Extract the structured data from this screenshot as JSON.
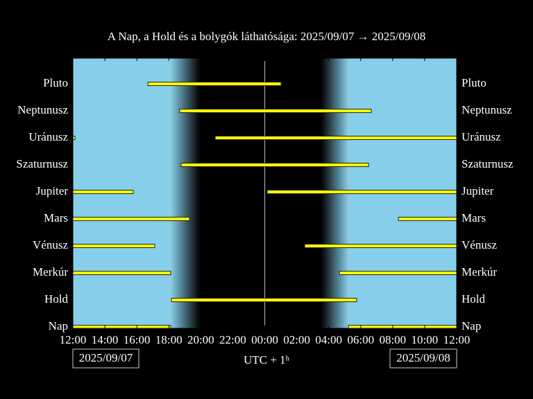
{
  "chart_data": {
    "type": "range-bar",
    "title": "A Nap, a Hold és a bolygók láthatósága: 2025/09/07 → 2025/09/08",
    "xlabel": "UTC + 1ʰ",
    "start_date": "2025/09/07",
    "end_date": "2025/09/08",
    "xlim": [
      12,
      36
    ],
    "xticks": [
      {
        "value": 12,
        "label": "12:00"
      },
      {
        "value": 14,
        "label": "14:00"
      },
      {
        "value": 16,
        "label": "16:00"
      },
      {
        "value": 18,
        "label": "18:00"
      },
      {
        "value": 20,
        "label": "20:00"
      },
      {
        "value": 22,
        "label": "22:00"
      },
      {
        "value": 24,
        "label": "00:00"
      },
      {
        "value": 26,
        "label": "02:00"
      },
      {
        "value": 28,
        "label": "04:00"
      },
      {
        "value": 30,
        "label": "06:00"
      },
      {
        "value": 32,
        "label": "08:00"
      },
      {
        "value": 34,
        "label": "10:00"
      },
      {
        "value": 36,
        "label": "12:00"
      }
    ],
    "sunset": 18.12,
    "dusk_end": 19.94,
    "midnight": 24,
    "dawn_start": 27.54,
    "sunrise": 29.23,
    "day_color": "#87ceeb",
    "night_color": "#000000",
    "bar_color": "#ffff00",
    "series": [
      {
        "name": "Pluto",
        "intervals": [
          [
            16.69,
            25.02
          ]
        ]
      },
      {
        "name": "Neptunusz",
        "intervals": [
          [
            18.68,
            30.66
          ]
        ]
      },
      {
        "name": "Uránusz",
        "intervals": [
          [
            12,
            12.13
          ],
          [
            20.9,
            36
          ]
        ]
      },
      {
        "name": "Szaturnusz",
        "intervals": [
          [
            18.77,
            30.49
          ]
        ]
      },
      {
        "name": "Jupiter",
        "intervals": [
          [
            12,
            15.78
          ],
          [
            24.15,
            36
          ]
        ]
      },
      {
        "name": "Mars",
        "intervals": [
          [
            12,
            19.29
          ],
          [
            32.36,
            36
          ]
        ]
      },
      {
        "name": "Vénusz",
        "intervals": [
          [
            12,
            17.12
          ],
          [
            26.5,
            36
          ]
        ]
      },
      {
        "name": "Merkúr",
        "intervals": [
          [
            12,
            18.12
          ],
          [
            28.67,
            36
          ]
        ]
      },
      {
        "name": "Hold",
        "intervals": [
          [
            18.16,
            29.75
          ]
        ]
      },
      {
        "name": "Nap",
        "intervals": [
          [
            12,
            18.12
          ],
          [
            29.23,
            36
          ]
        ]
      }
    ]
  }
}
